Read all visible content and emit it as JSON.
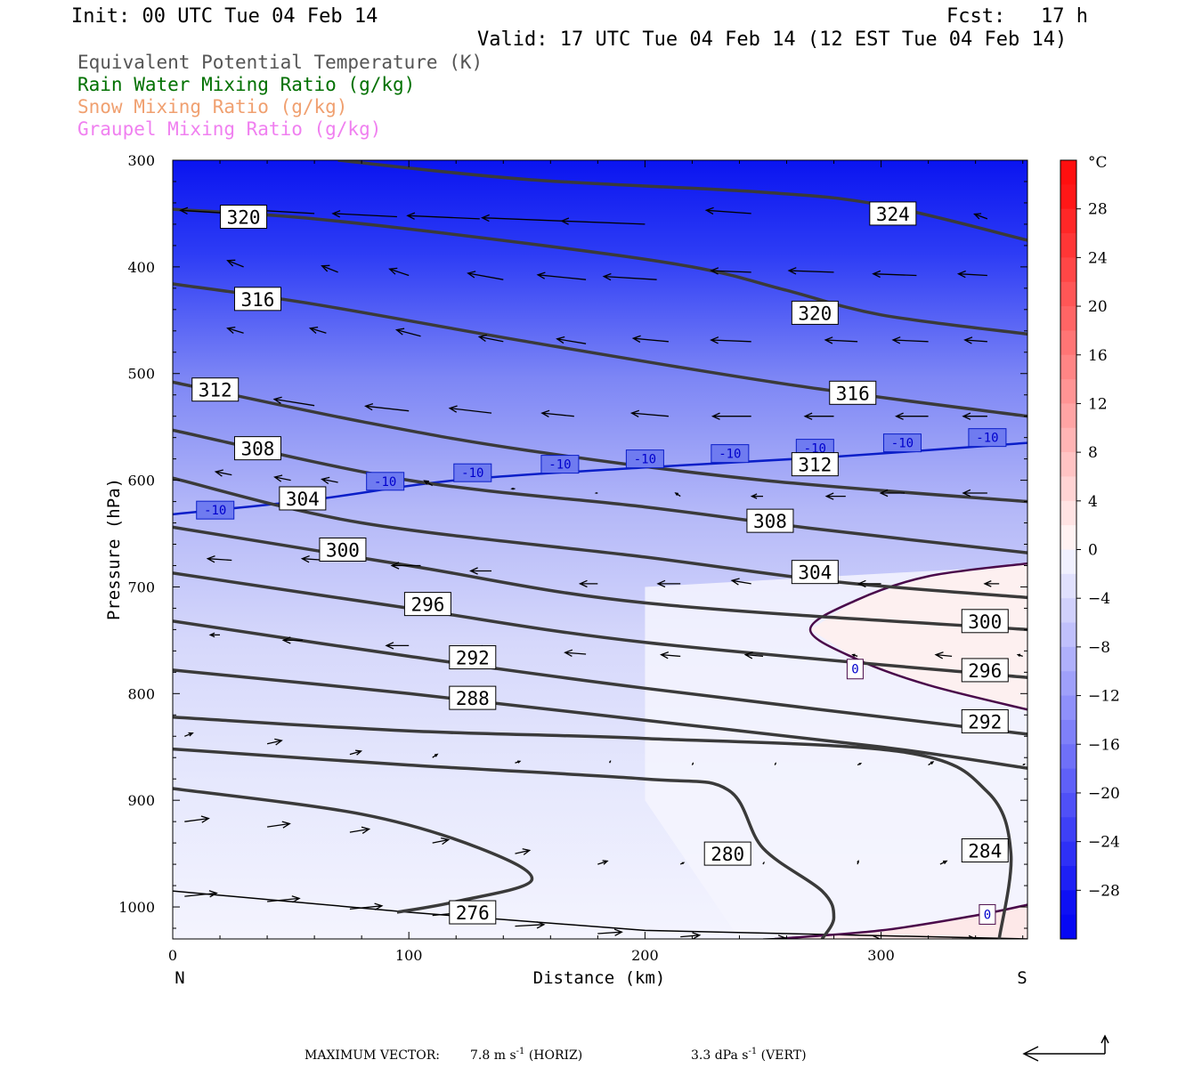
{
  "header": {
    "init": "Init: 00 UTC Tue 04 Feb 14",
    "fcst": "Fcst:   17 h",
    "valid": "Valid: 17 UTC Tue 04 Feb 14 (12 EST Tue 04 Feb 14)"
  },
  "fields": [
    {
      "label": "Equivalent Potential Temperature (K)",
      "color": "#555555"
    },
    {
      "label": "Rain Water Mixing Ratio (g/kg)",
      "color": "#007000"
    },
    {
      "label": "Snow Mixing Ratio (g/kg)",
      "color": "#f0a070"
    },
    {
      "label": "Graupel Mixing Ratio (g/kg)",
      "color": "#f080f0"
    }
  ],
  "footer": {
    "max_vector": "MAXIMUM VECTOR:",
    "horiz_value": "7.8 m s",
    "horiz_unit": "(HORIZ)",
    "vert_value": "3.3 dPa s",
    "vert_unit": "(VERT)",
    "exponent": "-1"
  },
  "chart_data": {
    "type": "heatmap",
    "xlabel": "Distance (km)",
    "ylabel": "Pressure (hPa)",
    "xlim": [
      0,
      362
    ],
    "ylim": [
      1030,
      300
    ],
    "x_ticks": [
      0,
      100,
      200,
      300
    ],
    "y_ticks": [
      300,
      400,
      500,
      600,
      700,
      800,
      900,
      1000
    ],
    "x_end_labels": {
      "left": "N",
      "right": "S"
    },
    "colorbar": {
      "unit": "°C",
      "ticks": [
        28,
        24,
        20,
        16,
        12,
        8,
        4,
        0,
        -4,
        -8,
        -12,
        -16,
        -20,
        -24,
        -28
      ],
      "range": [
        -32,
        32
      ]
    },
    "theta_e_contours": [
      {
        "value": 324,
        "points": [
          [
            70,
            300
          ],
          [
            150,
            318
          ],
          [
            250,
            330
          ],
          [
            300,
            342
          ],
          [
            362,
            375
          ]
        ],
        "labels": [
          [
            305,
            350
          ]
        ]
      },
      {
        "value": 320,
        "points": [
          [
            0,
            346
          ],
          [
            60,
            355
          ],
          [
            150,
            378
          ],
          [
            220,
            400
          ],
          [
            260,
            422
          ],
          [
            300,
            445
          ],
          [
            362,
            463
          ]
        ],
        "labels": [
          [
            30,
            353
          ],
          [
            272,
            443
          ]
        ]
      },
      {
        "value": 316,
        "points": [
          [
            0,
            416
          ],
          [
            60,
            435
          ],
          [
            150,
            470
          ],
          [
            260,
            510
          ],
          [
            362,
            540
          ]
        ],
        "labels": [
          [
            36,
            430
          ],
          [
            288,
            518
          ]
        ]
      },
      {
        "value": 312,
        "points": [
          [
            0,
            508
          ],
          [
            80,
            545
          ],
          [
            150,
            572
          ],
          [
            250,
            600
          ],
          [
            362,
            620
          ]
        ],
        "labels": [
          [
            18,
            515
          ],
          [
            272,
            585
          ]
        ]
      },
      {
        "value": 308,
        "points": [
          [
            0,
            553
          ],
          [
            100,
            600
          ],
          [
            200,
            625
          ],
          [
            270,
            645
          ],
          [
            362,
            668
          ]
        ],
        "labels": [
          [
            36,
            570
          ],
          [
            253,
            638
          ]
        ]
      },
      {
        "value": 304,
        "points": [
          [
            0,
            598
          ],
          [
            80,
            640
          ],
          [
            200,
            672
          ],
          [
            280,
            695
          ],
          [
            362,
            710
          ]
        ],
        "labels": [
          [
            55,
            617
          ],
          [
            272,
            686
          ]
        ]
      },
      {
        "value": 300,
        "points": [
          [
            0,
            644
          ],
          [
            100,
            680
          ],
          [
            200,
            715
          ],
          [
            362,
            740
          ]
        ],
        "labels": [
          [
            72,
            665
          ],
          [
            344,
            732
          ]
        ]
      },
      {
        "value": 296,
        "points": [
          [
            0,
            687
          ],
          [
            100,
            720
          ],
          [
            200,
            752
          ],
          [
            362,
            785
          ]
        ],
        "labels": [
          [
            108,
            716
          ],
          [
            344,
            778
          ]
        ]
      },
      {
        "value": 292,
        "points": [
          [
            0,
            732
          ],
          [
            100,
            765
          ],
          [
            200,
            795
          ],
          [
            362,
            838
          ]
        ],
        "labels": [
          [
            127,
            766
          ],
          [
            344,
            826
          ]
        ]
      },
      {
        "value": 288,
        "points": [
          [
            0,
            778
          ],
          [
            100,
            800
          ],
          [
            200,
            825
          ],
          [
            300,
            850
          ],
          [
            362,
            870
          ]
        ],
        "labels": [
          [
            127,
            804
          ]
        ]
      },
      {
        "value": 284,
        "points": [
          [
            0,
            822
          ],
          [
            100,
            835
          ],
          [
            200,
            842
          ],
          [
            310,
            855
          ],
          [
            345,
            892
          ],
          [
            355,
            950
          ],
          [
            350,
            1030
          ]
        ],
        "labels": [
          [
            344,
            947
          ]
        ]
      },
      {
        "value": 280,
        "points": [
          [
            0,
            852
          ],
          [
            100,
            867
          ],
          [
            200,
            880
          ],
          [
            235,
            890
          ],
          [
            250,
            945
          ],
          [
            275,
            985
          ],
          [
            280,
            1010
          ],
          [
            275,
            1030
          ]
        ],
        "labels": [
          [
            235,
            950
          ]
        ]
      },
      {
        "value": 276,
        "points": [
          [
            0,
            889
          ],
          [
            80,
            913
          ],
          [
            130,
            945
          ],
          [
            152,
            975
          ],
          [
            120,
            995
          ],
          [
            95,
            1005
          ]
        ],
        "labels": [
          [
            127,
            1005
          ]
        ]
      }
    ],
    "freezing_contours": [
      {
        "value": 0,
        "points": [
          [
            362,
            678
          ],
          [
            320,
            690
          ],
          [
            290,
            712
          ],
          [
            270,
            740
          ],
          [
            290,
            768
          ],
          [
            320,
            792
          ],
          [
            362,
            815
          ]
        ],
        "labels": [
          [
            289,
            777
          ]
        ]
      },
      {
        "value": 0,
        "points": [
          [
            255,
            1030
          ],
          [
            300,
            1022
          ],
          [
            340,
            1008
          ],
          [
            362,
            998
          ]
        ],
        "labels": [
          [
            345,
            1007
          ]
        ]
      }
    ],
    "isotherm_contours": [
      {
        "value": -10,
        "points": [
          [
            0,
            632
          ],
          [
            60,
            618
          ],
          [
            120,
            600
          ],
          [
            200,
            588
          ],
          [
            280,
            578
          ],
          [
            362,
            565
          ]
        ],
        "labels": [
          [
            18,
            628
          ],
          [
            90,
            601
          ],
          [
            127,
            593
          ],
          [
            164,
            585
          ],
          [
            200,
            580
          ],
          [
            236,
            575
          ],
          [
            272,
            570
          ],
          [
            309,
            565
          ],
          [
            345,
            560
          ]
        ]
      }
    ],
    "vectors": [
      [
        25,
        350,
        -3.2,
        0.2
      ],
      [
        60,
        350,
        -3.5,
        0.2
      ],
      [
        95,
        353,
        -4,
        0.2
      ],
      [
        130,
        355,
        -4.5,
        0.2
      ],
      [
        165,
        357,
        -5,
        0.2
      ],
      [
        200,
        360,
        -5.2,
        0.2
      ],
      [
        245,
        350,
        -2.8,
        0.2
      ],
      [
        345,
        355,
        -0.8,
        0.3
      ],
      [
        30,
        400,
        -1,
        0.4
      ],
      [
        70,
        405,
        -1,
        0.4
      ],
      [
        100,
        408,
        -1.2,
        0.4
      ],
      [
        140,
        412,
        -2.2,
        0.4
      ],
      [
        175,
        412,
        -3,
        0.3
      ],
      [
        205,
        412,
        -3.3,
        0.2
      ],
      [
        245,
        405,
        -2.5,
        0.1
      ],
      [
        280,
        405,
        -2.8,
        0.1
      ],
      [
        315,
        408,
        -2.7,
        0.1
      ],
      [
        345,
        408,
        -1.8,
        0.1
      ],
      [
        30,
        462,
        -1,
        0.3
      ],
      [
        65,
        462,
        -1,
        0.3
      ],
      [
        105,
        465,
        -1.5,
        0.4
      ],
      [
        140,
        470,
        -1.5,
        0.3
      ],
      [
        175,
        472,
        -1.8,
        0.3
      ],
      [
        210,
        470,
        -2.2,
        0.2
      ],
      [
        245,
        470,
        -2.5,
        0.1
      ],
      [
        290,
        470,
        -2,
        0.1
      ],
      [
        320,
        470,
        -2.2,
        0.1
      ],
      [
        345,
        470,
        -1.4,
        0.1
      ],
      [
        25,
        525,
        -1,
        0.3
      ],
      [
        60,
        530,
        -2.5,
        0.4
      ],
      [
        100,
        535,
        -2.7,
        0.3
      ],
      [
        135,
        537,
        -2.6,
        0.3
      ],
      [
        170,
        540,
        -2,
        0.2
      ],
      [
        210,
        540,
        -2.3,
        0.2
      ],
      [
        245,
        540,
        -2.4,
        0
      ],
      [
        280,
        540,
        -1.8,
        0
      ],
      [
        320,
        540,
        -2,
        0
      ],
      [
        345,
        540,
        -1.5,
        0
      ],
      [
        25,
        595,
        -1,
        0.2
      ],
      [
        50,
        600,
        -1,
        0.2
      ],
      [
        70,
        602,
        -1,
        0.2
      ],
      [
        110,
        605,
        -0.5,
        0.3
      ],
      [
        145,
        608,
        -0.2,
        0
      ],
      [
        180,
        612,
        -0.1,
        0
      ],
      [
        215,
        615,
        -0.3,
        0.2
      ],
      [
        250,
        615,
        -0.7,
        0
      ],
      [
        285,
        615,
        -1.2,
        0
      ],
      [
        310,
        612,
        -1.5,
        0
      ],
      [
        345,
        612,
        -1.5,
        0
      ],
      [
        25,
        675,
        -1.5,
        0.1
      ],
      [
        65,
        675,
        -1.5,
        0.1
      ],
      [
        105,
        680,
        -1.8,
        0
      ],
      [
        135,
        685,
        -1.3,
        0
      ],
      [
        180,
        697,
        -1.1,
        0
      ],
      [
        215,
        697,
        -1.4,
        0
      ],
      [
        245,
        697,
        -1.2,
        0.2
      ],
      [
        300,
        697,
        -1.4,
        0
      ],
      [
        350,
        697,
        -0.9,
        0
      ],
      [
        20,
        745,
        -0.6,
        0
      ],
      [
        55,
        750,
        -1.2,
        0
      ],
      [
        100,
        755,
        -1.4,
        0
      ],
      [
        135,
        758,
        -1,
        0
      ],
      [
        175,
        763,
        -1.3,
        0.1
      ],
      [
        215,
        765,
        -1.2,
        0.1
      ],
      [
        250,
        765,
        -1.1,
        0.1
      ],
      [
        290,
        765,
        -0.3,
        0.1
      ],
      [
        330,
        765,
        -1,
        0.1
      ],
      [
        360,
        765,
        -0.3,
        0.1
      ],
      [
        5,
        840,
        0.5,
        0.2
      ],
      [
        40,
        847,
        0.9,
        0.2
      ],
      [
        75,
        857,
        0.7,
        0.2
      ],
      [
        110,
        860,
        0.3,
        0.2
      ],
      [
        145,
        865,
        0.3,
        0.1
      ],
      [
        185,
        865,
        0.05,
        0.1
      ],
      [
        220,
        867,
        0.05,
        0.1
      ],
      [
        255,
        867,
        0.05,
        0.1
      ],
      [
        290,
        867,
        0.2,
        0.1
      ],
      [
        320,
        867,
        0.3,
        0.2
      ],
      [
        360,
        867,
        0.1,
        0.05
      ],
      [
        5,
        920,
        1.5,
        0.2
      ],
      [
        40,
        925,
        1.4,
        0.2
      ],
      [
        75,
        930,
        1.2,
        0.2
      ],
      [
        110,
        940,
        1,
        0.2
      ],
      [
        145,
        950,
        0.9,
        0.2
      ],
      [
        180,
        960,
        0.6,
        0.2
      ],
      [
        215,
        960,
        0.2,
        0.1
      ],
      [
        250,
        960,
        0.05,
        0.1
      ],
      [
        290,
        960,
        0.05,
        0.2
      ],
      [
        325,
        960,
        0.4,
        0.2
      ],
      [
        5,
        990,
        2,
        0.2
      ],
      [
        40,
        995,
        2,
        0.2
      ],
      [
        75,
        1002,
        2,
        0.2
      ],
      [
        110,
        1008,
        2,
        0.2
      ],
      [
        145,
        1018,
        1.8,
        0.1
      ],
      [
        180,
        1025,
        1.5,
        0.1
      ],
      [
        215,
        1028,
        1.2,
        0.1
      ],
      [
        250,
        1030,
        1.4,
        0.05
      ],
      [
        290,
        1030,
        1.4,
        0
      ],
      [
        330,
        1030,
        1.5,
        0
      ]
    ]
  }
}
